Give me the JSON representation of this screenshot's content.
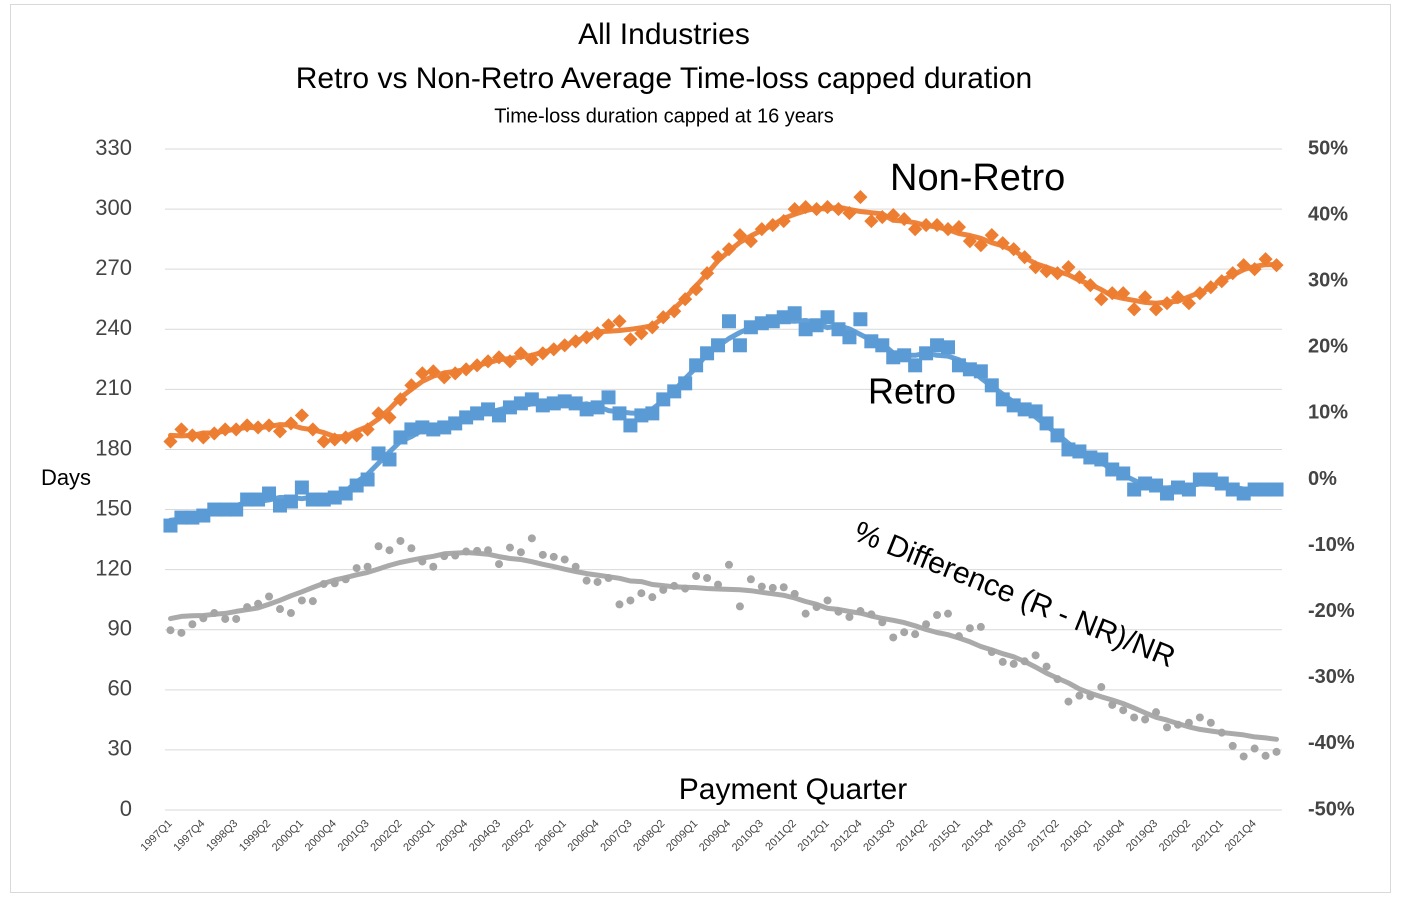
{
  "chart_data": {
    "type": "scatter",
    "title": "All Industries",
    "subtitle": "Retro vs Non-Retro Average Time-loss capped duration",
    "note": "Time-loss duration capped at 16 years",
    "y_label": "Days",
    "x_label": "Payment Quarter",
    "annotations": [
      "Non-Retro",
      "Retro",
      "% Difference (R - NR)/NR"
    ],
    "ylim": [
      0,
      330
    ],
    "yticks": [
      0,
      30,
      60,
      90,
      120,
      150,
      180,
      210,
      240,
      270,
      300,
      330
    ],
    "y2lim": [
      -50,
      50
    ],
    "y2ticks": [
      {
        "value": -50,
        "label": "-50%"
      },
      {
        "value": -40,
        "label": "-40%"
      },
      {
        "value": -30,
        "label": "-30%"
      },
      {
        "value": -20,
        "label": "-20%"
      },
      {
        "value": -10,
        "label": "-10%"
      },
      {
        "value": 0,
        "label": "0%"
      },
      {
        "value": 10,
        "label": "10%"
      },
      {
        "value": 20,
        "label": "20%"
      },
      {
        "value": 30,
        "label": "30%"
      },
      {
        "value": 40,
        "label": "40%"
      },
      {
        "value": 50,
        "label": "50%"
      }
    ],
    "grid": true,
    "categories": [
      "1997Q1",
      null,
      null,
      "1997Q4",
      null,
      null,
      "1998Q3",
      null,
      null,
      "1999Q2",
      null,
      null,
      "2000Q1",
      null,
      null,
      "2000Q4",
      null,
      null,
      "2001Q3",
      null,
      null,
      "2002Q2",
      null,
      null,
      "2003Q1",
      null,
      null,
      "2003Q4",
      null,
      null,
      "2004Q3",
      null,
      null,
      "2005Q2",
      null,
      null,
      "2006Q1",
      null,
      null,
      "2006Q4",
      null,
      null,
      "2007Q3",
      null,
      null,
      "2008Q2",
      null,
      null,
      "2009Q1",
      null,
      null,
      "2009Q4",
      null,
      null,
      "2010Q3",
      null,
      null,
      "2011Q2",
      null,
      null,
      "2012Q1",
      null,
      null,
      "2012Q4",
      null,
      null,
      "2013Q3",
      null,
      null,
      "2014Q2",
      null,
      null,
      "2015Q1",
      null,
      null,
      "2015Q4",
      null,
      null,
      "2016Q3",
      null,
      null,
      "2017Q2",
      null,
      null,
      "2018Q1",
      null,
      null,
      "2018Q4",
      null,
      null,
      "2019Q3",
      null,
      null,
      "2020Q2",
      null,
      null,
      "2021Q1",
      null,
      null,
      "2021Q4",
      null,
      null
    ],
    "series": [
      {
        "name": "Non-Retro",
        "color": "#ED7D31",
        "marker": "diamond",
        "trendline_period": 4,
        "values": [
          184,
          190,
          187,
          186,
          188,
          190,
          190,
          192,
          191,
          192,
          189,
          193,
          197,
          190,
          184,
          185,
          186,
          187,
          190,
          198,
          196,
          205,
          212,
          218,
          219,
          216,
          218,
          220,
          222,
          224,
          226,
          224,
          228,
          225,
          228,
          230,
          232,
          234,
          236,
          238,
          242,
          244,
          235,
          238,
          241,
          246,
          249,
          255,
          260,
          268,
          276,
          280,
          287,
          284,
          290,
          292,
          294,
          300,
          301,
          300,
          301,
          300,
          298,
          306,
          294,
          296,
          297,
          295,
          290,
          292,
          292,
          290,
          291,
          284,
          282,
          287,
          283,
          280,
          276,
          271,
          269,
          268,
          271,
          266,
          262,
          255,
          258,
          258,
          250,
          256,
          250,
          253,
          256,
          253,
          258,
          261,
          264,
          268,
          272,
          270,
          275,
          272
        ]
      },
      {
        "name": "Retro",
        "color": "#5B9BD5",
        "marker": "square",
        "trendline_period": 4,
        "values": [
          142,
          146,
          146,
          147,
          150,
          150,
          150,
          155,
          155,
          158,
          152,
          154,
          161,
          155,
          155,
          156,
          158,
          162,
          165,
          178,
          175,
          186,
          190,
          191,
          190,
          191,
          193,
          196,
          198,
          200,
          197,
          201,
          203,
          205,
          202,
          203,
          204,
          203,
          200,
          201,
          206,
          198,
          192,
          197,
          198,
          205,
          209,
          213,
          222,
          228,
          232,
          244,
          232,
          241,
          243,
          244,
          246,
          248,
          240,
          242,
          246,
          240,
          236,
          245,
          234,
          232,
          226,
          227,
          222,
          228,
          232,
          231,
          222,
          220,
          219,
          212,
          205,
          202,
          200,
          199,
          193,
          187,
          180,
          179,
          176,
          175,
          170,
          168,
          160,
          163,
          162,
          158,
          161,
          160,
          165,
          165,
          163,
          160,
          158,
          160,
          160,
          160
        ]
      },
      {
        "name": "% Difference (R - NR)/NR",
        "color": "#A5A5A5",
        "marker": "circle",
        "axis": "y2",
        "trendline_period": 17,
        "values": [
          -22.8,
          -23.2,
          -21.9,
          -21.0,
          -20.2,
          -21.1,
          -21.1,
          -19.3,
          -18.8,
          -17.7,
          -19.6,
          -20.2,
          -18.3,
          -18.4,
          -15.8,
          -15.7,
          -15.1,
          -13.4,
          -13.2,
          -10.1,
          -10.7,
          -9.3,
          -10.4,
          -12.4,
          -13.2,
          -11.6,
          -11.5,
          -10.9,
          -10.8,
          -10.7,
          -12.8,
          -10.3,
          -11.0,
          -8.9,
          -11.4,
          -11.7,
          -12.1,
          -13.2,
          -15.3,
          -15.5,
          -14.9,
          -18.9,
          -18.3,
          -17.2,
          -17.8,
          -16.7,
          -16.1,
          -16.5,
          -14.6,
          -14.9,
          -15.9,
          -12.9,
          -19.2,
          -15.1,
          -16.2,
          -16.4,
          -16.3,
          -17.3,
          -20.3,
          -19.3,
          -18.3,
          -20.0,
          -20.8,
          -19.9,
          -20.4,
          -21.6,
          -23.9,
          -23.1,
          -23.4,
          -21.9,
          -20.5,
          -20.3,
          -23.7,
          -22.5,
          -22.3,
          -26.1,
          -27.6,
          -27.9,
          -27.5,
          -26.6,
          -28.3,
          -30.2,
          -33.6,
          -32.7,
          -32.8,
          -31.4,
          -34.1,
          -34.9,
          -36.0,
          -36.3,
          -35.2,
          -37.5,
          -37.1,
          -36.8,
          -36.0,
          -36.8,
          -38.3,
          -40.3,
          -41.9,
          -40.7,
          -41.8,
          -41.2
        ]
      }
    ]
  }
}
